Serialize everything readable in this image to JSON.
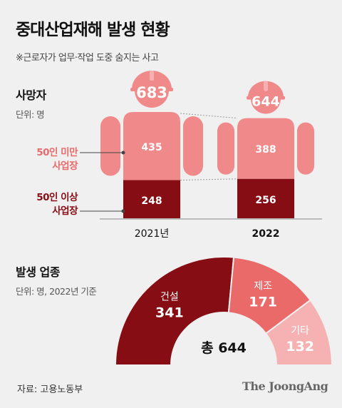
{
  "title": "중대산업재해 발생 현황",
  "subtitle": "※근로자가 업무·작업 도중 숨지는 사고",
  "deaths": {
    "section_title": "사망자",
    "unit": "단위: 명",
    "legend": {
      "small": "50인 미만\n사업장",
      "large": "50인 이상\n사업장"
    },
    "colors": {
      "small": "#f08a8a",
      "large": "#870d14"
    }
  },
  "industry": {
    "section_title": "발생 업종",
    "unit": "단위: 명, 2022년 기준",
    "total_label": "총 644",
    "colors": [
      "#870d14",
      "#ea6a6a",
      "#f6b2b2"
    ]
  },
  "chart_data": [
    {
      "type": "bar",
      "stacked": true,
      "categories": [
        "2021년",
        "2022"
      ],
      "series": [
        {
          "name": "50인 이상 사업장",
          "values": [
            248,
            256
          ]
        },
        {
          "name": "50인 미만 사업장",
          "values": [
            435,
            388
          ]
        }
      ],
      "totals": [
        683,
        644
      ]
    },
    {
      "type": "pie",
      "style": "half-donut",
      "labels": [
        "건설",
        "제조",
        "기타"
      ],
      "values": [
        341,
        171,
        132
      ],
      "total": 644
    }
  ],
  "source": "자료: 고용노동부",
  "brand": "The JoongAng"
}
